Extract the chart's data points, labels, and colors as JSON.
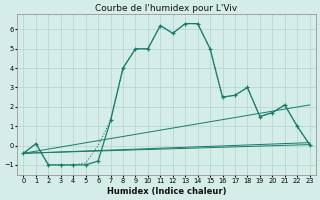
{
  "title": "Courbe de l'humidex pour L'Viv",
  "xlabel": "Humidex (Indice chaleur)",
  "bg_color": "#d5ede8",
  "grid_color": "#b8d8d2",
  "line_color": "#1a7a6a",
  "x_ticks": [
    0,
    1,
    2,
    3,
    4,
    5,
    6,
    7,
    8,
    9,
    10,
    11,
    12,
    13,
    14,
    15,
    16,
    17,
    18,
    19,
    20,
    21,
    22,
    23
  ],
  "ylim": [
    -1.5,
    6.8
  ],
  "xlim": [
    -0.5,
    23.5
  ],
  "line_straight1": {
    "x": [
      0,
      23
    ],
    "y": [
      -0.4,
      0.05
    ]
  },
  "line_straight2": {
    "x": [
      0,
      23
    ],
    "y": [
      -0.4,
      0.15
    ]
  },
  "line_straight3": {
    "x": [
      0,
      23
    ],
    "y": [
      -0.4,
      2.1
    ]
  },
  "line_main": {
    "x": [
      0,
      1,
      2,
      3,
      4,
      5,
      6,
      7,
      8,
      9,
      10,
      11,
      12,
      13,
      14,
      15,
      16,
      17,
      18,
      19,
      20,
      21,
      22,
      23
    ],
    "y": [
      -0.4,
      0.1,
      -1.0,
      -1.0,
      -1.0,
      -1.0,
      -0.8,
      1.3,
      4.0,
      5.0,
      5.0,
      6.2,
      5.8,
      6.3,
      6.3,
      5.0,
      2.5,
      2.6,
      3.0,
      1.5,
      1.7,
      2.1,
      1.0,
      0.05
    ]
  },
  "line_dot": {
    "x": [
      0,
      1,
      2,
      3,
      4,
      5,
      6,
      7,
      8,
      9,
      10,
      11,
      12,
      13,
      14,
      15,
      16,
      17,
      18,
      19,
      20,
      21,
      22,
      23
    ],
    "y": [
      -0.4,
      0.1,
      -1.0,
      -1.0,
      -1.0,
      -0.9,
      0.0,
      1.3,
      4.0,
      5.0,
      5.0,
      6.2,
      5.8,
      6.3,
      6.3,
      5.0,
      2.5,
      2.6,
      3.0,
      1.5,
      1.7,
      2.1,
      1.0,
      0.05
    ]
  },
  "title_fontsize": 6.5,
  "xlabel_fontsize": 6,
  "tick_fontsize": 4.8
}
